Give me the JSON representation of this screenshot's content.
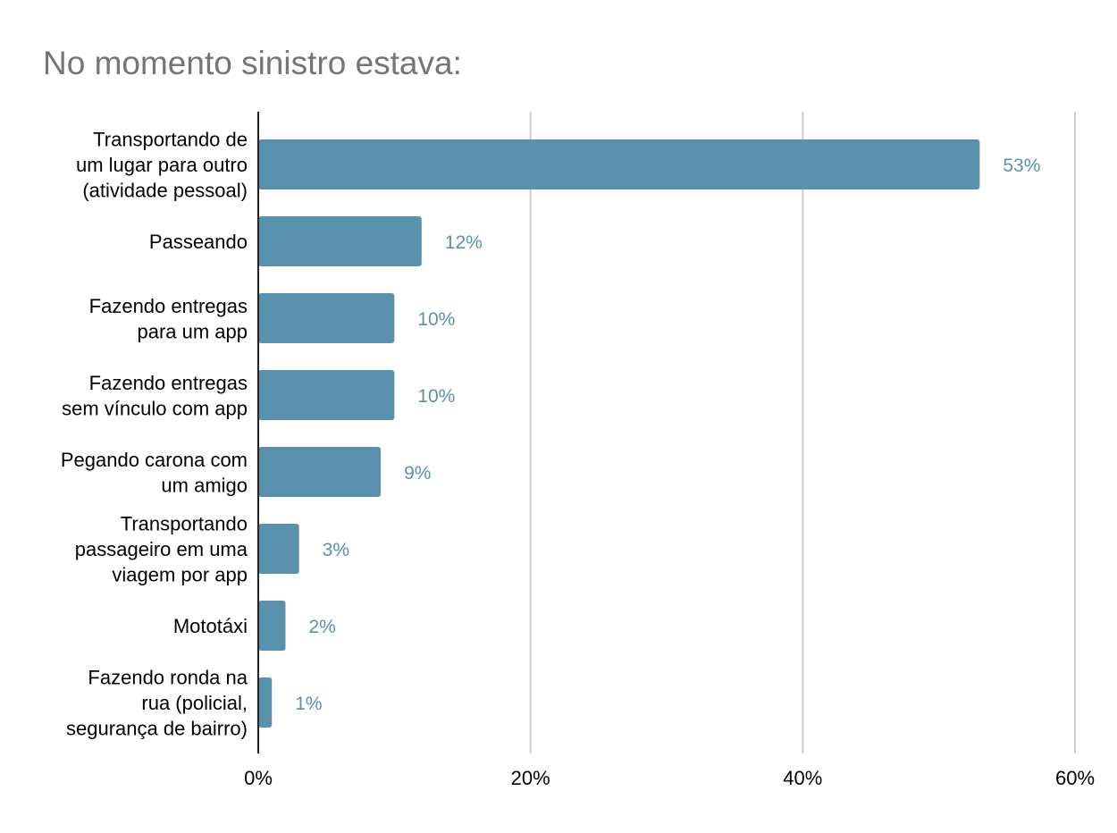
{
  "chart_data": {
    "type": "bar",
    "orientation": "horizontal",
    "title": "No momento sinistro estava:",
    "categories": [
      [
        "Transportando de",
        "um lugar para outro",
        "(atividade pessoal)"
      ],
      [
        "Passeando"
      ],
      [
        "Fazendo entregas",
        "para um app"
      ],
      [
        "Fazendo entregas",
        "sem vínculo com app"
      ],
      [
        "Pegando carona com",
        "um amigo"
      ],
      [
        "Transportando",
        "passageiro em uma",
        "viagem por app"
      ],
      [
        "Mototáxi"
      ],
      [
        "Fazendo ronda na",
        "rua (policial,",
        "segurança de bairro)"
      ]
    ],
    "values": [
      53,
      12,
      10,
      10,
      9,
      3,
      2,
      1
    ],
    "data_labels": [
      "53%",
      "12%",
      "10%",
      "10%",
      "9%",
      "3%",
      "2%",
      "1%"
    ],
    "x_ticks": [
      "0%",
      "20%",
      "40%",
      "60%"
    ],
    "x_tick_values": [
      0,
      20,
      40,
      60
    ],
    "xlim": [
      0,
      60
    ],
    "xlabel": "",
    "ylabel": "",
    "grid": true,
    "legend": "none",
    "bar_color": "#5a91ad",
    "label_color": "#5a91ad",
    "grid_color": "#cccccc"
  }
}
